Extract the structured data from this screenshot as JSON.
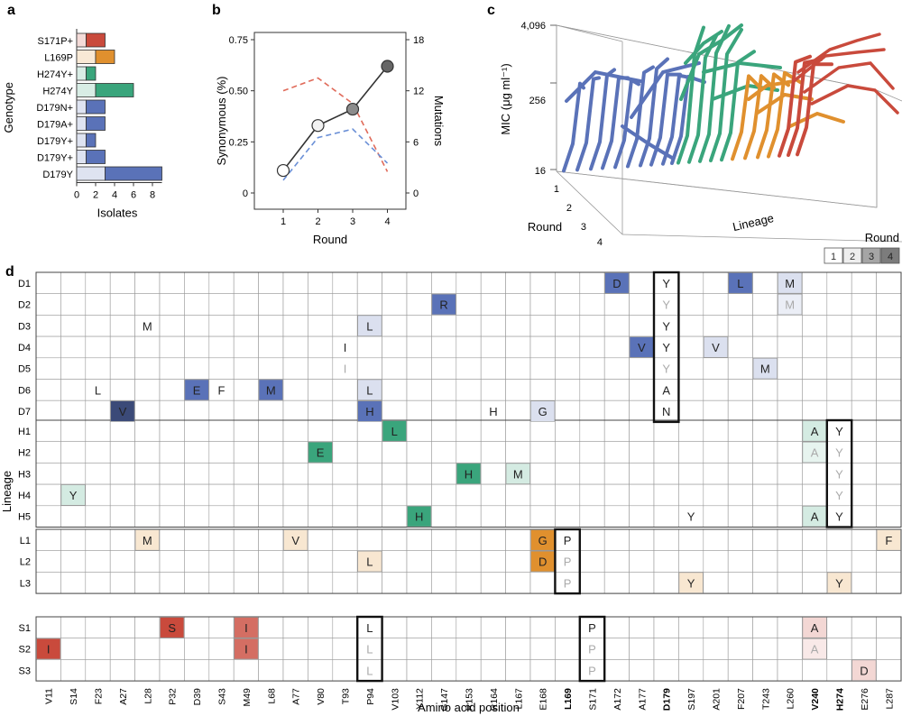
{
  "panel_labels": {
    "a": "a",
    "b": "b",
    "c": "c",
    "d": "d"
  },
  "colors": {
    "D": "#5a72b8",
    "H": "#3aa57c",
    "L": "#e0902e",
    "S": "#c94a3c"
  },
  "chart_data": [
    {
      "panel": "a",
      "type": "bar",
      "stacked": true,
      "orientation": "horizontal",
      "ylabel": "Genotype",
      "xlabel": "Isolates",
      "xlim": [
        0,
        9
      ],
      "xticks": [
        "0",
        "2",
        "4",
        "6",
        "8"
      ],
      "categories": [
        "S171P+",
        "L169P",
        "H274Y+",
        "H274Y",
        "D179N+",
        "D179A+",
        "D179Y+",
        "D179Y+",
        "D179Y"
      ],
      "groups": [
        "S",
        "L",
        "H",
        "H",
        "D",
        "D",
        "D",
        "D",
        "D"
      ],
      "series": [
        {
          "name": "light",
          "values": [
            1,
            2,
            1,
            2,
            1,
            1,
            1,
            1,
            3
          ]
        },
        {
          "name": "dark",
          "values": [
            2,
            2,
            1,
            4,
            2,
            2,
            1,
            2,
            6
          ]
        }
      ]
    },
    {
      "panel": "b",
      "type": "line",
      "xlabel": "Round",
      "ylabel": "Synonymous (%)",
      "y2label": "Mutations",
      "x": [
        1,
        2,
        3,
        4
      ],
      "xticks": [
        "1",
        "2",
        "3",
        "4"
      ],
      "ylim": [
        0,
        0.75
      ],
      "yticks": [
        "0",
        "0.25",
        "0.50",
        "0.75"
      ],
      "y2lim": [
        0,
        18
      ],
      "y2ticks": [
        "0",
        "6",
        "12",
        "18"
      ],
      "series": [
        {
          "name": "Synonymous",
          "axis": "left",
          "values": [
            0.11,
            0.33,
            0.41,
            0.62
          ]
        },
        {
          "name": "Mutations (red)",
          "axis": "right",
          "values": [
            12,
            13.5,
            10.5,
            2.5
          ]
        },
        {
          "name": "Mutations (blue)",
          "axis": "right",
          "values": [
            1.5,
            6.5,
            7.5,
            3.5
          ]
        }
      ]
    },
    {
      "panel": "c",
      "type": "line",
      "projection": "3d",
      "zlabel": "MIC (μg ml⁻¹)",
      "xlabel": "Lineage",
      "ylabel": "Round",
      "zticks": [
        "16",
        "256",
        "4,096"
      ],
      "yticks": [
        "1",
        "2",
        "3",
        "4"
      ]
    }
  ],
  "legend": {
    "title": "Round",
    "items": [
      "1",
      "2",
      "3",
      "4"
    ]
  },
  "heatmap": {
    "ylabel": "Lineage",
    "xlabel": "Amino acid position",
    "positions": [
      "V11",
      "S14",
      "F23",
      "A27",
      "L28",
      "P32",
      "D39",
      "S43",
      "M49",
      "L68",
      "A77",
      "V80",
      "T93",
      "P94",
      "V103",
      "Y112",
      "G147",
      "R153",
      "R164",
      "L167",
      "E168",
      "L169",
      "S171",
      "A172",
      "A177",
      "D179",
      "S197",
      "A201",
      "F207",
      "T243",
      "L260",
      "V240",
      "H274",
      "E276",
      "L287"
    ],
    "bold_positions": [
      "L169",
      "D179",
      "V240",
      "H274"
    ],
    "groups": [
      {
        "rows": [
          "D1",
          "D2",
          "D3",
          "D4",
          "D5",
          "D6",
          "D7"
        ]
      },
      {
        "rows": [
          "H1",
          "H2",
          "H3",
          "H4",
          "H5"
        ]
      },
      {
        "rows": [
          "L1",
          "L2",
          "L3"
        ]
      },
      {
        "rows": [
          "S1",
          "S2",
          "S3"
        ]
      }
    ],
    "cells": [
      {
        "row": "D1",
        "col": "A172",
        "letter": "D",
        "round": 4
      },
      {
        "row": "D1",
        "col": "D179",
        "letter": "Y",
        "round": 0
      },
      {
        "row": "D1",
        "col": "F207",
        "letter": "L",
        "round": 4
      },
      {
        "row": "D1",
        "col": "L260",
        "letter": "M",
        "round": 2
      },
      {
        "row": "D2",
        "col": "G147",
        "letter": "R",
        "round": 4
      },
      {
        "row": "D2",
        "col": "D179",
        "letter": "Y",
        "round": -1
      },
      {
        "row": "D2",
        "col": "L260",
        "letter": "M",
        "round": 1
      },
      {
        "row": "D3",
        "col": "L28",
        "letter": "M",
        "round": 0
      },
      {
        "row": "D3",
        "col": "P94",
        "letter": "L",
        "round": 2
      },
      {
        "row": "D3",
        "col": "D179",
        "letter": "Y",
        "round": 0
      },
      {
        "row": "D4",
        "col": "T93",
        "letter": "I",
        "round": 0
      },
      {
        "row": "D4",
        "col": "A177",
        "letter": "V",
        "round": 4
      },
      {
        "row": "D4",
        "col": "D179",
        "letter": "Y",
        "round": 0
      },
      {
        "row": "D4",
        "col": "A201",
        "letter": "V",
        "round": 2
      },
      {
        "row": "D5",
        "col": "T93",
        "letter": "I",
        "round": -1
      },
      {
        "row": "D5",
        "col": "D179",
        "letter": "Y",
        "round": -1
      },
      {
        "row": "D5",
        "col": "T243",
        "letter": "M",
        "round": 2
      },
      {
        "row": "D6",
        "col": "F23",
        "letter": "L",
        "round": 0
      },
      {
        "row": "D6",
        "col": "D39",
        "letter": "E",
        "round": 4
      },
      {
        "row": "D6",
        "col": "S43",
        "letter": "F",
        "round": 0
      },
      {
        "row": "D6",
        "col": "L68",
        "letter": "M",
        "round": 4
      },
      {
        "row": "D6",
        "col": "P94",
        "letter": "L",
        "round": 2
      },
      {
        "row": "D6",
        "col": "D179",
        "letter": "A",
        "round": 0
      },
      {
        "row": "D7",
        "col": "A27",
        "letter": "V",
        "round": 5
      },
      {
        "row": "D7",
        "col": "P94",
        "letter": "H",
        "round": 4
      },
      {
        "row": "D7",
        "col": "R164",
        "letter": "H",
        "round": 0
      },
      {
        "row": "D7",
        "col": "E168",
        "letter": "G",
        "round": 2
      },
      {
        "row": "D7",
        "col": "D179",
        "letter": "N",
        "round": 0
      },
      {
        "row": "H1",
        "col": "V103",
        "letter": "L",
        "round": 4
      },
      {
        "row": "H1",
        "col": "V240",
        "letter": "A",
        "round": 2
      },
      {
        "row": "H1",
        "col": "H274",
        "letter": "Y",
        "round": 0
      },
      {
        "row": "H2",
        "col": "V80",
        "letter": "E",
        "round": 4
      },
      {
        "row": "H2",
        "col": "V240",
        "letter": "A",
        "round": 1
      },
      {
        "row": "H2",
        "col": "H274",
        "letter": "Y",
        "round": -1
      },
      {
        "row": "H3",
        "col": "R153",
        "letter": "H",
        "round": 4
      },
      {
        "row": "H3",
        "col": "L167",
        "letter": "M",
        "round": 2
      },
      {
        "row": "H3",
        "col": "H274",
        "letter": "Y",
        "round": -1
      },
      {
        "row": "H4",
        "col": "S14",
        "letter": "Y",
        "round": 2
      },
      {
        "row": "H4",
        "col": "H274",
        "letter": "Y",
        "round": -1
      },
      {
        "row": "H5",
        "col": "Y112",
        "letter": "H",
        "round": 4
      },
      {
        "row": "H5",
        "col": "S197",
        "letter": "Y",
        "round": 0
      },
      {
        "row": "H5",
        "col": "V240",
        "letter": "A",
        "round": 2
      },
      {
        "row": "H5",
        "col": "H274",
        "letter": "Y",
        "round": 0
      },
      {
        "row": "L1",
        "col": "L28",
        "letter": "M",
        "round": 2
      },
      {
        "row": "L1",
        "col": "A77",
        "letter": "V",
        "round": 2
      },
      {
        "row": "L1",
        "col": "E168",
        "letter": "G",
        "round": 4
      },
      {
        "row": "L1",
        "col": "L169",
        "letter": "P",
        "round": 0
      },
      {
        "row": "L1",
        "col": "L287",
        "letter": "F",
        "round": 2
      },
      {
        "row": "L2",
        "col": "P94",
        "letter": "L",
        "round": 2
      },
      {
        "row": "L2",
        "col": "E168",
        "letter": "D",
        "round": 4
      },
      {
        "row": "L2",
        "col": "L169",
        "letter": "P",
        "round": -1
      },
      {
        "row": "L3",
        "col": "L169",
        "letter": "P",
        "round": -1
      },
      {
        "row": "L3",
        "col": "S197",
        "letter": "Y",
        "round": 2
      },
      {
        "row": "L3",
        "col": "H274",
        "letter": "Y",
        "round": 2
      },
      {
        "row": "S1",
        "col": "P32",
        "letter": "S",
        "round": 4
      },
      {
        "row": "S1",
        "col": "M49",
        "letter": "I",
        "round": 3
      },
      {
        "row": "S1",
        "col": "P94",
        "letter": "L",
        "round": 0
      },
      {
        "row": "S1",
        "col": "S171",
        "letter": "P",
        "round": 0
      },
      {
        "row": "S1",
        "col": "V240",
        "letter": "A",
        "round": 2
      },
      {
        "row": "S2",
        "col": "V11",
        "letter": "I",
        "round": 4
      },
      {
        "row": "S2",
        "col": "M49",
        "letter": "I",
        "round": 3
      },
      {
        "row": "S2",
        "col": "P94",
        "letter": "L",
        "round": -1
      },
      {
        "row": "S2",
        "col": "S171",
        "letter": "P",
        "round": -1
      },
      {
        "row": "S2",
        "col": "V240",
        "letter": "A",
        "round": 1
      },
      {
        "row": "S3",
        "col": "P94",
        "letter": "L",
        "round": -1
      },
      {
        "row": "S3",
        "col": "S171",
        "letter": "P",
        "round": -1
      },
      {
        "row": "S3",
        "col": "E276",
        "letter": "D",
        "round": 2
      }
    ],
    "boxes": [
      {
        "col": "D179",
        "group": 0
      },
      {
        "col": "H274",
        "group": 1
      },
      {
        "col": "L169",
        "group": 2
      },
      {
        "col": "P94",
        "group": 3
      },
      {
        "col": "S171",
        "group": 3
      }
    ]
  }
}
